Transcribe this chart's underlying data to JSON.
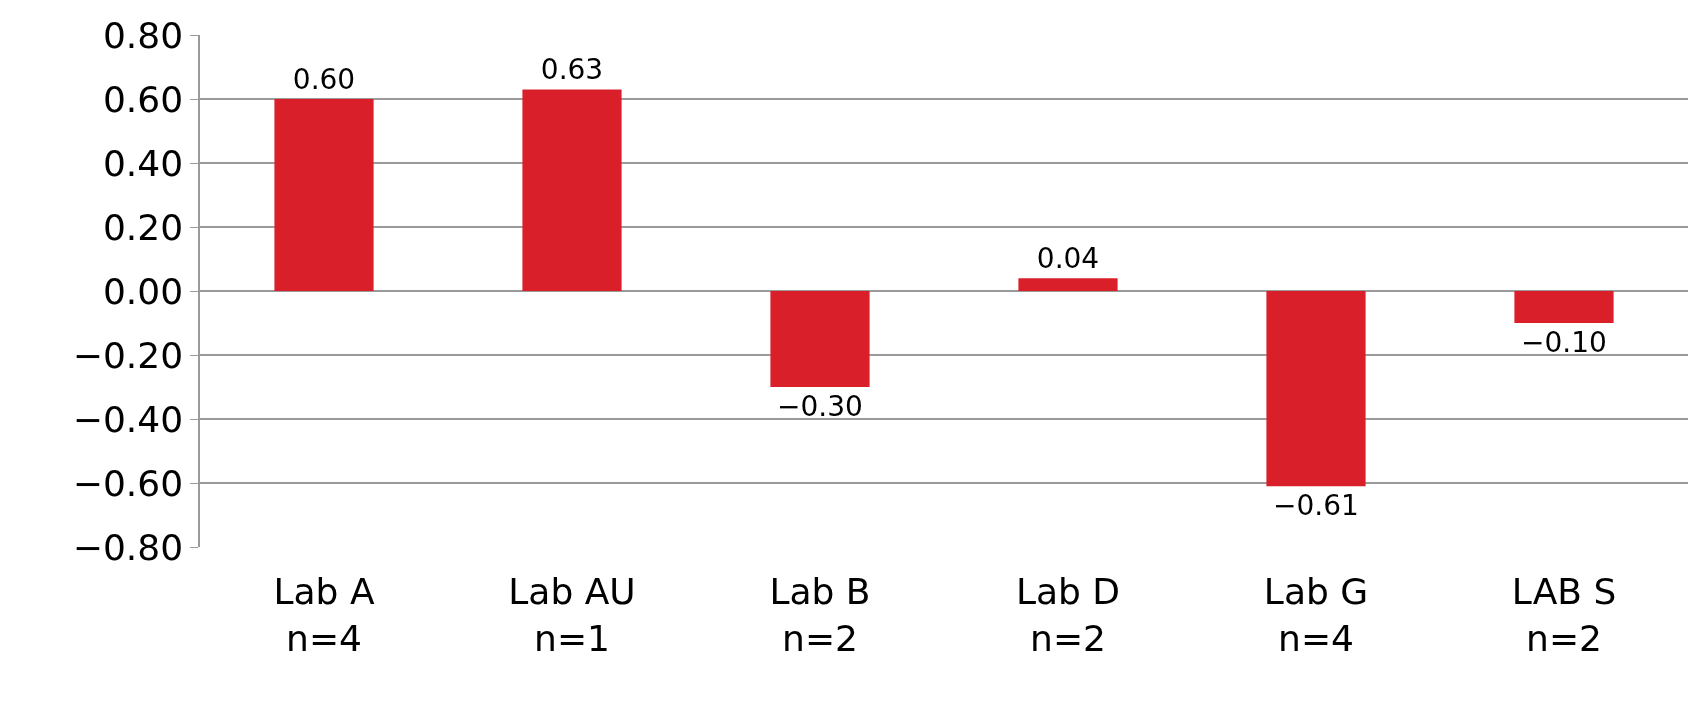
{
  "chart_data": {
    "type": "bar",
    "categories": [
      "Lab A\nn=4",
      "Lab AU\nn=1",
      "Lab B\nn=2",
      "Lab D\nn=2",
      "Lab G\nn=4",
      "LAB S\nn=2"
    ],
    "values": [
      0.6,
      0.63,
      -0.3,
      0.04,
      -0.61,
      -0.1
    ],
    "value_labels": [
      "0.60",
      "0.63",
      "−0.30",
      "0.04",
      "−0.61",
      "−0.10"
    ],
    "color": "#d9202a",
    "ylim": [
      -0.8,
      0.8
    ],
    "yticks": [
      {
        "value": 0.8,
        "label": "0.80"
      },
      {
        "value": 0.6,
        "label": "0.60"
      },
      {
        "value": 0.4,
        "label": "0.40"
      },
      {
        "value": 0.2,
        "label": "0.20"
      },
      {
        "value": 0,
        "label": "0.00"
      },
      {
        "value": -0.2,
        "label": "−0.20"
      },
      {
        "value": -0.4,
        "label": "−0.40"
      },
      {
        "value": -0.6,
        "label": "−0.60"
      },
      {
        "value": -0.8,
        "label": "−0.80"
      }
    ],
    "grid": "y"
  }
}
